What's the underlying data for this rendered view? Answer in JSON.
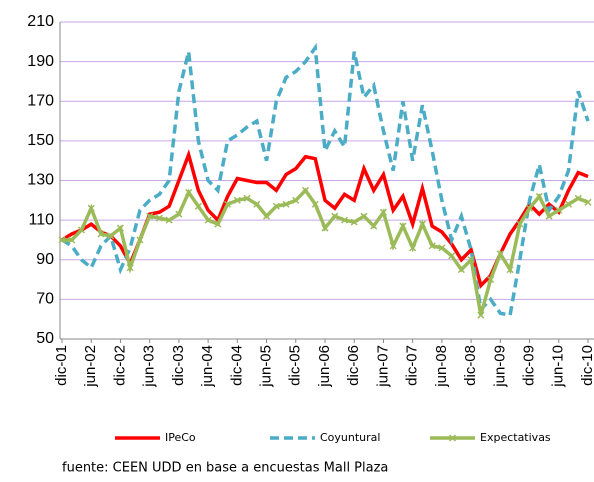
{
  "chart_data": {
    "type": "line",
    "categories": [
      "dic-01",
      null,
      null,
      "jun-02",
      null,
      null,
      "dic-02",
      null,
      null,
      "jun-03",
      null,
      null,
      "dic-03",
      null,
      null,
      "jun-04",
      null,
      null,
      "dic-04",
      null,
      null,
      "jun-05",
      null,
      null,
      "dic-05",
      null,
      null,
      "jun-06",
      null,
      null,
      "dic-06",
      null,
      null,
      "jun-07",
      null,
      null,
      "dic-07",
      null,
      null,
      "jun-08",
      null,
      null,
      "dic-08",
      null,
      null,
      "jun-09",
      null,
      null,
      "dic-09",
      null,
      null,
      "jun-10",
      null,
      null,
      "dic-10"
    ],
    "series": [
      {
        "name": "IPeCo",
        "color": "#ff0000",
        "dash": false,
        "marker": null,
        "values": [
          100,
          103,
          105,
          108,
          104,
          102,
          97,
          88,
          100,
          113,
          114,
          117,
          130,
          143,
          125,
          115,
          110,
          122,
          131,
          130,
          129,
          129,
          125,
          133,
          136,
          142,
          141,
          120,
          116,
          123,
          120,
          136,
          125,
          133,
          115,
          122,
          108,
          126,
          107,
          104,
          98,
          90,
          95,
          77,
          82,
          93,
          103,
          110,
          118,
          113,
          118,
          114,
          125,
          134,
          132
        ]
      },
      {
        "name": "Coyuntural",
        "color": "#4bacc6",
        "dash": true,
        "marker": null,
        "values": [
          100,
          97,
          90,
          86,
          97,
          102,
          85,
          96,
          115,
          120,
          123,
          130,
          175,
          195,
          150,
          130,
          125,
          150,
          153,
          157,
          160,
          140,
          170,
          182,
          185,
          190,
          197,
          145,
          155,
          147,
          195,
          172,
          178,
          155,
          135,
          170,
          140,
          168,
          145,
          120,
          100,
          112,
          95,
          65,
          70,
          63,
          62,
          90,
          120,
          138,
          115,
          122,
          135,
          175,
          160
        ]
      },
      {
        "name": "Expectativas",
        "color": "#9bbb59",
        "dash": false,
        "marker": "x",
        "values": [
          100,
          100,
          105,
          116,
          103,
          102,
          106,
          86,
          100,
          112,
          111,
          110,
          113,
          124,
          117,
          110,
          108,
          118,
          120,
          121,
          118,
          112,
          117,
          118,
          120,
          125,
          118,
          106,
          112,
          110,
          109,
          112,
          107,
          114,
          97,
          107,
          96,
          108,
          97,
          96,
          92,
          85,
          90,
          62,
          80,
          93,
          85,
          108,
          116,
          122,
          112,
          115,
          118,
          121,
          119
        ]
      }
    ],
    "ylim": [
      50,
      210
    ],
    "yticks": [
      50,
      70,
      90,
      110,
      130,
      150,
      170,
      190,
      210
    ],
    "grid": true,
    "legend": "bottom",
    "note": "fuente: CEEN UDD en base a encuestas Mall Plaza"
  }
}
